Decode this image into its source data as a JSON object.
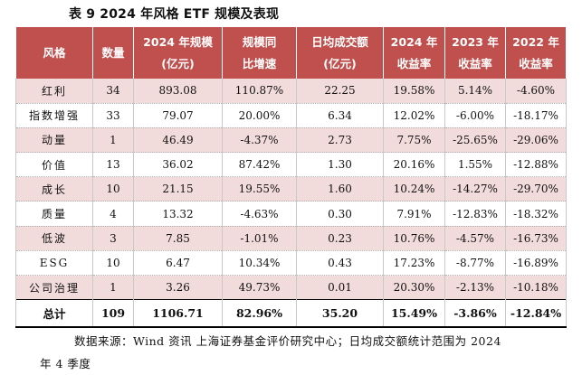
{
  "title": "表 9  2024 年风格 ETF 规模及表现",
  "table": {
    "headers": [
      {
        "line1": "风格",
        "line2": ""
      },
      {
        "line1": "数量",
        "line2": ""
      },
      {
        "line1": "2024 年规模",
        "line2": "(亿元)"
      },
      {
        "line1": "规模同",
        "line2": "比增速"
      },
      {
        "line1": "日均成交额",
        "line2": "(亿元)"
      },
      {
        "line1": "2024 年",
        "line2": "收益率"
      },
      {
        "line1": "2023 年",
        "line2": "收益率"
      },
      {
        "line1": "2022 年",
        "line2": "收益率"
      }
    ],
    "rows": [
      [
        "红利",
        "34",
        "893.08",
        "110.87%",
        "22.25",
        "19.58%",
        "5.14%",
        "-4.60%"
      ],
      [
        "指数增强",
        "33",
        "79.07",
        "20.00%",
        "6.34",
        "12.02%",
        "-6.00%",
        "-18.17%"
      ],
      [
        "动量",
        "1",
        "46.49",
        "-4.37%",
        "2.73",
        "7.75%",
        "-25.65%",
        "-29.06%"
      ],
      [
        "价值",
        "13",
        "36.02",
        "87.42%",
        "1.30",
        "20.16%",
        "1.55%",
        "-12.88%"
      ],
      [
        "成长",
        "10",
        "21.15",
        "19.55%",
        "1.60",
        "10.24%",
        "-14.27%",
        "-29.70%"
      ],
      [
        "质量",
        "4",
        "13.32",
        "-4.63%",
        "0.30",
        "7.91%",
        "-12.83%",
        "-18.32%"
      ],
      [
        "低波",
        "3",
        "7.85",
        "-1.01%",
        "0.23",
        "10.76%",
        "-4.57%",
        "-16.73%"
      ],
      [
        "ESG",
        "10",
        "6.47",
        "10.34%",
        "0.43",
        "17.23%",
        "-8.77%",
        "-16.89%"
      ],
      [
        "公司治理",
        "1",
        "3.26",
        "49.73%",
        "0.01",
        "20.30%",
        "-2.13%",
        "-10.18%"
      ]
    ],
    "total": [
      "总计",
      "109",
      "1106.71",
      "82.96%",
      "35.20",
      "15.49%",
      "-3.86%",
      "-12.84%"
    ]
  },
  "source_note_line1": "数据来源：Wind 资讯  上海证券基金评价研究中心；日均成交额统计范围为 2024",
  "source_note_line2": "年 4 季度",
  "colors": {
    "header_bg": "#c0504d",
    "row_shade": "#f2dcdb",
    "header_text": "#ffffff"
  }
}
